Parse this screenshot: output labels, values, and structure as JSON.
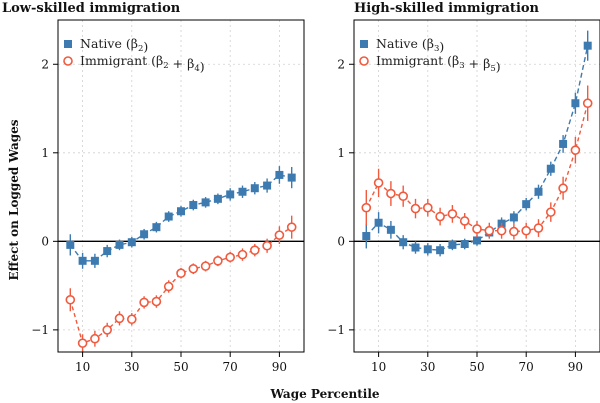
{
  "chart_data": [
    {
      "type": "scatter",
      "title": "Low-skilled immigration",
      "ylabel": "Effect on Logged Wages",
      "xlabel": "Wage Percentile",
      "xlim": [
        0,
        100
      ],
      "ylim": [
        -1.25,
        2.5
      ],
      "xticks": [
        10,
        30,
        50,
        70,
        90
      ],
      "yticks": [
        -1,
        0,
        1,
        2
      ],
      "grid": true,
      "legend_position": "top-left",
      "x": [
        5,
        10,
        15,
        20,
        25,
        30,
        35,
        40,
        45,
        50,
        55,
        60,
        65,
        70,
        75,
        80,
        85,
        90,
        95
      ],
      "series": [
        {
          "name": "Native (β2)",
          "marker": "square",
          "color": "#3d7ab0",
          "values": [
            -0.04,
            -0.22,
            -0.22,
            -0.11,
            -0.04,
            -0.01,
            0.08,
            0.16,
            0.28,
            0.34,
            0.41,
            0.44,
            0.48,
            0.53,
            0.56,
            0.6,
            0.63,
            0.75,
            0.72
          ],
          "err": [
            0.12,
            0.09,
            0.08,
            0.07,
            0.06,
            0.06,
            0.06,
            0.06,
            0.06,
            0.06,
            0.06,
            0.06,
            0.06,
            0.07,
            0.07,
            0.07,
            0.08,
            0.1,
            0.12
          ]
        },
        {
          "name": "Immigrant (β2 + β4)",
          "marker": "circle-open",
          "color": "#f05a3e",
          "values": [
            -0.66,
            -1.15,
            -1.1,
            -1.0,
            -0.87,
            -0.88,
            -0.69,
            -0.68,
            -0.51,
            -0.36,
            -0.31,
            -0.28,
            -0.22,
            -0.18,
            -0.15,
            -0.1,
            -0.05,
            0.07,
            0.16
          ],
          "err": [
            0.13,
            0.1,
            0.09,
            0.08,
            0.08,
            0.07,
            0.07,
            0.07,
            0.07,
            0.06,
            0.06,
            0.06,
            0.06,
            0.06,
            0.07,
            0.07,
            0.08,
            0.1,
            0.13
          ]
        }
      ]
    },
    {
      "type": "scatter",
      "title": "High-skilled immigration",
      "xlim": [
        0,
        100
      ],
      "ylim": [
        -1.25,
        2.5
      ],
      "xticks": [
        10,
        30,
        50,
        70,
        90
      ],
      "yticks": [
        -1,
        0,
        1,
        2
      ],
      "grid": true,
      "legend_position": "top-left",
      "x": [
        5,
        10,
        15,
        20,
        25,
        30,
        35,
        40,
        45,
        50,
        55,
        60,
        65,
        70,
        75,
        80,
        85,
        90,
        95
      ],
      "series": [
        {
          "name": "Native (β3)",
          "marker": "square",
          "color": "#3d7ab0",
          "values": [
            0.06,
            0.21,
            0.13,
            -0.01,
            -0.07,
            -0.09,
            -0.1,
            -0.04,
            -0.03,
            0.01,
            0.1,
            0.2,
            0.27,
            0.42,
            0.56,
            0.82,
            1.1,
            1.56,
            2.21
          ],
          "err": [
            0.14,
            0.12,
            0.1,
            0.08,
            0.07,
            0.07,
            0.07,
            0.06,
            0.06,
            0.06,
            0.06,
            0.07,
            0.07,
            0.07,
            0.08,
            0.08,
            0.1,
            0.12,
            0.17
          ]
        },
        {
          "name": "Immigrant (β3 + β5)",
          "marker": "circle-open",
          "color": "#f05a3e",
          "values": [
            0.38,
            0.66,
            0.54,
            0.51,
            0.37,
            0.38,
            0.28,
            0.31,
            0.23,
            0.14,
            0.12,
            0.12,
            0.11,
            0.12,
            0.15,
            0.33,
            0.6,
            1.03,
            1.56
          ],
          "err": [
            0.2,
            0.16,
            0.14,
            0.12,
            0.11,
            0.1,
            0.1,
            0.1,
            0.09,
            0.09,
            0.09,
            0.09,
            0.09,
            0.09,
            0.1,
            0.11,
            0.13,
            0.15,
            0.2
          ]
        }
      ]
    }
  ]
}
